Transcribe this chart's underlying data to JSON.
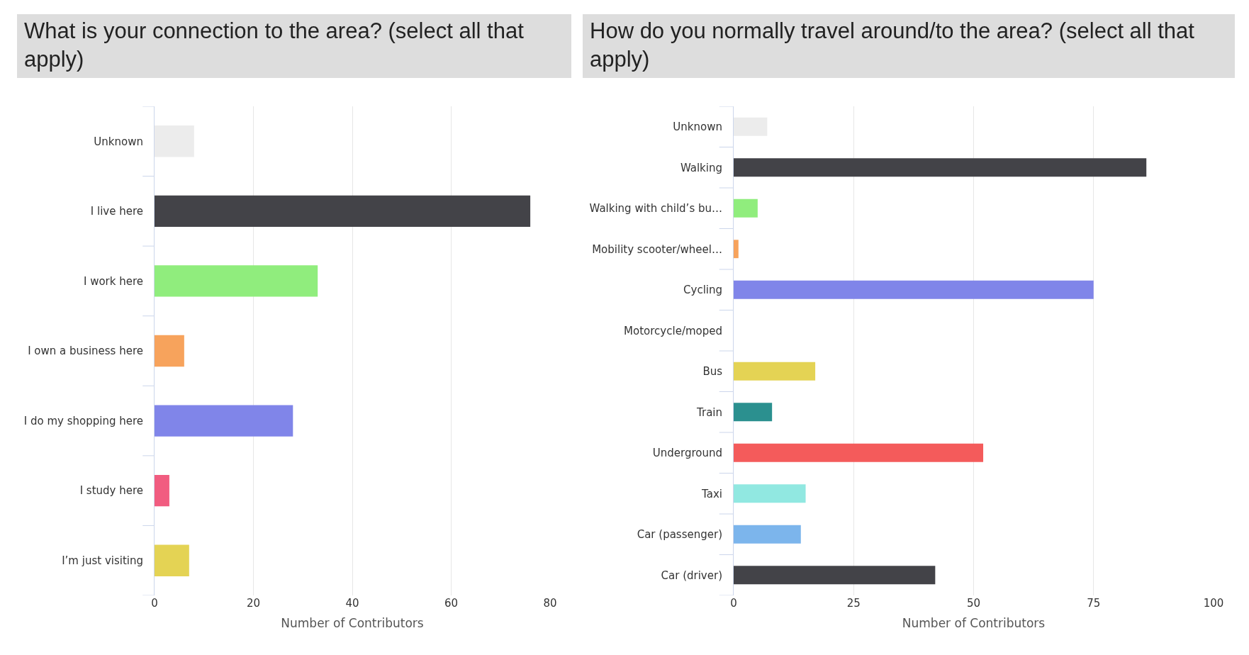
{
  "chart_data": [
    {
      "type": "bar",
      "title": "What is your connection to the area? (select all that apply)",
      "orientation": "horizontal",
      "categories": [
        "Unknown",
        "I live here",
        "I work here",
        "I own a business here",
        "I do my shopping here",
        "I study here",
        "I’m just visiting"
      ],
      "values": [
        8,
        76,
        33,
        6,
        28,
        3,
        7
      ],
      "colors": [
        "#ececec",
        "#434348",
        "#90ed7d",
        "#f7a35c",
        "#8085e9",
        "#f15c80",
        "#e4d354"
      ],
      "xlabel": "Number of Contributors",
      "xlim": [
        0,
        80
      ],
      "xticks": [
        0,
        20,
        40,
        60,
        80
      ],
      "grid": "x"
    },
    {
      "type": "bar",
      "title": "How do you normally travel around/to the area? (select all that apply)",
      "orientation": "horizontal",
      "categories": [
        "Unknown",
        "Walking",
        "Walking with child’s bu…",
        "Mobility scooter/wheel…",
        "Cycling",
        "Motorcycle/moped",
        "Bus",
        "Train",
        "Underground",
        "Taxi",
        "Car (passenger)",
        "Car (driver)"
      ],
      "values": [
        7,
        86,
        5,
        1,
        75,
        0,
        17,
        8,
        52,
        15,
        14,
        42
      ],
      "colors": [
        "#ececec",
        "#434348",
        "#90ed7d",
        "#f7a35c",
        "#8085e9",
        "#8085e9",
        "#e4d354",
        "#2b908f",
        "#f45b5b",
        "#91e8e1",
        "#7cb5ec",
        "#434348"
      ],
      "xlabel": "Number of Contributors",
      "xlim": [
        0,
        100
      ],
      "xticks": [
        0,
        25,
        50,
        75,
        100
      ],
      "grid": "x"
    }
  ]
}
